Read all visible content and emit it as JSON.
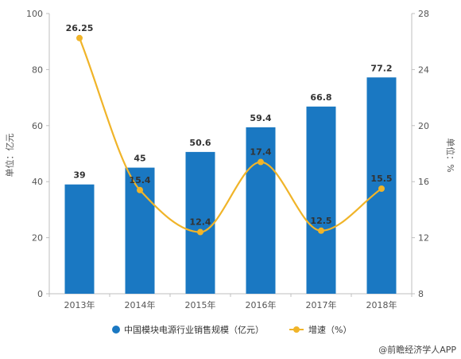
{
  "chart_data": {
    "type": "bar",
    "categories": [
      "2013年",
      "2014年",
      "2015年",
      "2016年",
      "2017年",
      "2018年"
    ],
    "series": [
      {
        "name": "中国模块电源行业销售规模（亿元）",
        "type": "bar",
        "axis": "left",
        "values": [
          39,
          45,
          50.6,
          59.4,
          66.8,
          77.2
        ],
        "labels": [
          "39",
          "45",
          "50.6",
          "59.4",
          "66.8",
          "77.2"
        ],
        "color": "#1a78c2"
      },
      {
        "name": "增速（%）",
        "type": "line",
        "axis": "right",
        "smooth": true,
        "values": [
          26.25,
          15.4,
          12.4,
          17.4,
          12.5,
          15.5
        ],
        "labels": [
          "26.25",
          "15.4",
          "12.4",
          "17.4",
          "12.5",
          "15.5"
        ],
        "color": "#f0b429"
      }
    ],
    "yLeft": {
      "label": "单位：亿元",
      "min": 0,
      "max": 100,
      "ticks": [
        0,
        20,
        40,
        60,
        80,
        100
      ]
    },
    "yRight": {
      "label": "单位：%",
      "min": 8,
      "max": 28,
      "ticks": [
        8,
        12,
        16,
        20,
        24,
        28
      ]
    },
    "grid": false,
    "legend": "bottom-center",
    "credit": "@前瞻经济学人APP"
  }
}
